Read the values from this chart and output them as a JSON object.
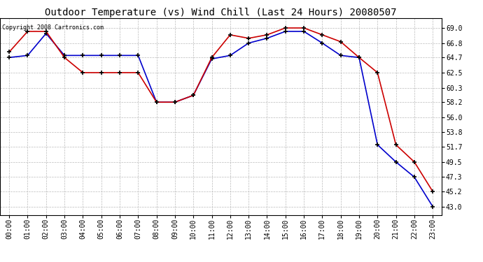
{
  "title": "Outdoor Temperature (vs) Wind Chill (Last 24 Hours) 20080507",
  "copyright": "Copyright 2008 Cartronics.com",
  "x_labels": [
    "00:00",
    "01:00",
    "02:00",
    "03:00",
    "04:00",
    "05:00",
    "06:00",
    "07:00",
    "08:00",
    "09:00",
    "10:00",
    "11:00",
    "12:00",
    "13:00",
    "14:00",
    "15:00",
    "16:00",
    "17:00",
    "18:00",
    "19:00",
    "20:00",
    "21:00",
    "22:00",
    "23:00"
  ],
  "temp_red": [
    65.5,
    68.5,
    68.5,
    64.7,
    62.5,
    62.5,
    62.5,
    62.5,
    58.2,
    58.2,
    59.2,
    64.7,
    68.0,
    67.5,
    68.0,
    69.0,
    69.0,
    68.0,
    67.0,
    64.7,
    62.5,
    52.0,
    49.5,
    45.2
  ],
  "windchill_blue": [
    64.7,
    65.0,
    68.2,
    65.0,
    65.0,
    65.0,
    65.0,
    65.0,
    58.2,
    58.2,
    59.2,
    64.5,
    65.0,
    66.8,
    67.5,
    68.5,
    68.5,
    66.8,
    65.0,
    64.7,
    52.0,
    49.5,
    47.3,
    43.0
  ],
  "y_ticks": [
    43.0,
    45.2,
    47.3,
    49.5,
    51.7,
    53.8,
    56.0,
    58.2,
    60.3,
    62.5,
    64.7,
    66.8,
    69.0
  ],
  "ylim": [
    41.8,
    70.4
  ],
  "red_color": "#cc0000",
  "blue_color": "#0000cc",
  "bg_color": "#ffffff",
  "grid_color": "#bbbbbb",
  "title_fontsize": 10,
  "copyright_fontsize": 6,
  "tick_fontsize": 7
}
